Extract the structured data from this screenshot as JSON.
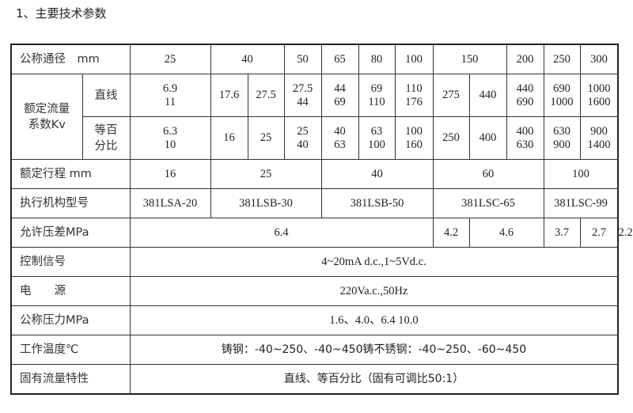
{
  "title": "1、主要技术参数",
  "table": {
    "nominal_diameter": {
      "label": "公称通径　mm",
      "values": [
        "25",
        "40",
        "50",
        "65",
        "80",
        "100",
        "150",
        "200",
        "250",
        "300"
      ]
    },
    "kv": {
      "label_line1": "额定流量",
      "label_line2": "系数Kv",
      "linear": {
        "label": "直线",
        "values": [
          [
            "6.9",
            "11"
          ],
          [
            "17.6"
          ],
          [
            "27.5"
          ],
          [
            "27.5",
            "44"
          ],
          [
            "44",
            "69"
          ],
          [
            "69",
            "110"
          ],
          [
            "110",
            "176"
          ],
          [
            "275"
          ],
          [
            "440"
          ],
          [
            "440",
            "690"
          ],
          [
            "690",
            "1000"
          ],
          [
            "1000",
            "1600"
          ]
        ]
      },
      "equal_percent": {
        "label_line1": "等百",
        "label_line2": "分比",
        "values": [
          [
            "6.3",
            "10"
          ],
          [
            "16"
          ],
          [
            "25"
          ],
          [
            "25",
            "40"
          ],
          [
            "40",
            "63"
          ],
          [
            "63",
            "100"
          ],
          [
            "100",
            "160"
          ],
          [
            "250"
          ],
          [
            "400"
          ],
          [
            "400",
            "630"
          ],
          [
            "630",
            "900"
          ],
          [
            "900",
            "1400"
          ]
        ]
      }
    },
    "stroke": {
      "label": "额定行程 mm",
      "values": [
        "16",
        "25",
        "40",
        "60",
        "100"
      ]
    },
    "actuator": {
      "label": "执行机构型号",
      "values": [
        "381LSA-20",
        "381LSB-30",
        "381LSB-50",
        "381LSC-65",
        "381LSC-99"
      ]
    },
    "pressure_diff": {
      "label": "允许压差MPa",
      "values": [
        "6.4",
        "4.2",
        "4.6",
        "3.7",
        "2.7",
        "2.2"
      ]
    },
    "control_signal": {
      "label": "控制信号",
      "value": "4~20mA d.c.,1~5Vd.c."
    },
    "power": {
      "label": "电　　源",
      "value": "220Va.c.,50Hz"
    },
    "nominal_pressure": {
      "label": "公称压力MPa",
      "value": "1.6、4.0、6.4  10.0"
    },
    "temperature": {
      "label": "工作温度℃",
      "value": "铸钢：-40~250、-40~450铸不锈钢：-40~250、-60~450"
    },
    "flow_characteristic": {
      "label": "固有流量特性",
      "value": "直线、等百分比（固有可调比50:1）"
    }
  }
}
